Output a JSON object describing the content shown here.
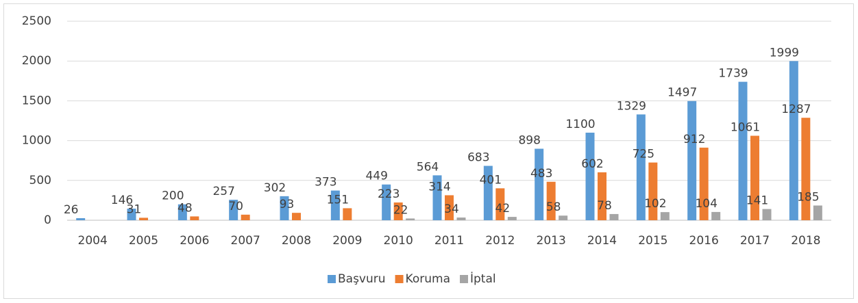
{
  "chart_data": {
    "type": "bar",
    "categories": [
      "2004",
      "2005",
      "2006",
      "2007",
      "2008",
      "2009",
      "2010",
      "2011",
      "2012",
      "2013",
      "2014",
      "2015",
      "2016",
      "2017",
      "2018"
    ],
    "series": [
      {
        "name": "Başvuru",
        "color": "#5b9bd5",
        "values": [
          26,
          146,
          200,
          257,
          302,
          373,
          449,
          564,
          683,
          898,
          1100,
          1329,
          1497,
          1739,
          1999
        ]
      },
      {
        "name": "Koruma",
        "color": "#ed7d31",
        "values": [
          null,
          31,
          48,
          70,
          93,
          151,
          223,
          314,
          401,
          483,
          602,
          725,
          912,
          1061,
          1287
        ]
      },
      {
        "name": "İptal",
        "color": "#a5a5a5",
        "values": [
          null,
          null,
          null,
          null,
          null,
          null,
          22,
          34,
          42,
          58,
          78,
          102,
          104,
          141,
          185
        ]
      }
    ],
    "ylim": [
      0,
      2500
    ],
    "yticks": [
      0,
      500,
      1000,
      1500,
      2000,
      2500
    ],
    "grid": true,
    "legend": "bottom"
  }
}
